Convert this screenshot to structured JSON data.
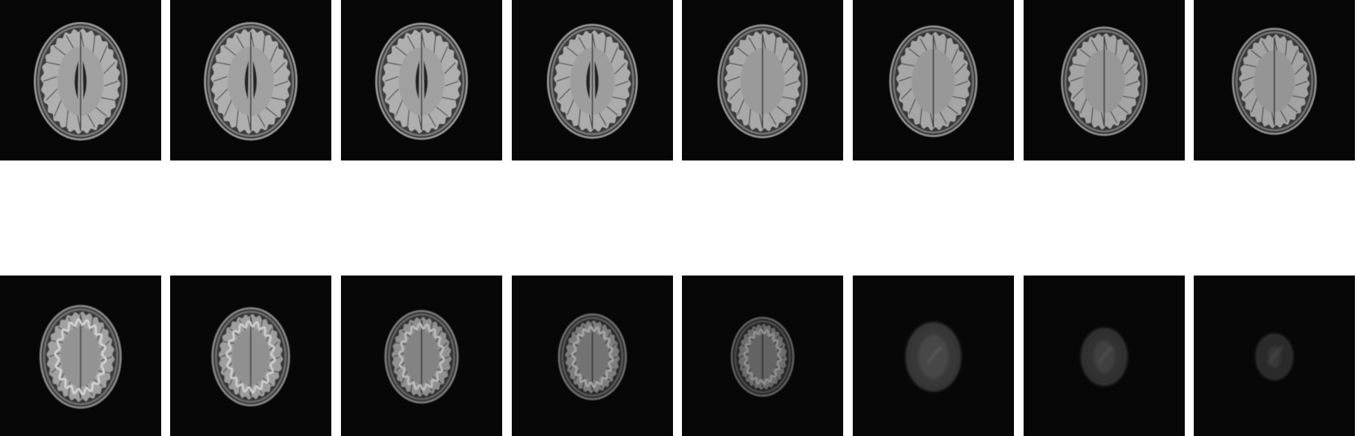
{
  "figure": {
    "background_color": "#ffffff",
    "tile_background": "#070707",
    "rows": [
      {
        "row_id": "top",
        "slices": [
          {
            "kind": "ventricle-level",
            "intensity": 1.0,
            "head_scale": 1.0
          },
          {
            "kind": "ventricle-level",
            "intensity": 1.0,
            "head_scale": 1.0
          },
          {
            "kind": "ventricle-level",
            "intensity": 1.0,
            "head_scale": 0.99
          },
          {
            "kind": "ventricle-level",
            "intensity": 0.98,
            "head_scale": 0.97
          },
          {
            "kind": "supraventricular",
            "intensity": 0.96,
            "head_scale": 0.96
          },
          {
            "kind": "supraventricular",
            "intensity": 0.95,
            "head_scale": 0.94
          },
          {
            "kind": "supraventricular",
            "intensity": 0.94,
            "head_scale": 0.92
          },
          {
            "kind": "supraventricular",
            "intensity": 0.93,
            "head_scale": 0.9
          }
        ]
      },
      {
        "row_id": "bottom",
        "slices": [
          {
            "kind": "vertex-gyri",
            "intensity": 0.92,
            "head_scale": 0.87
          },
          {
            "kind": "vertex-gyri",
            "intensity": 0.9,
            "head_scale": 0.83
          },
          {
            "kind": "vertex-gyri",
            "intensity": 0.82,
            "head_scale": 0.78
          },
          {
            "kind": "vertex-gyri",
            "intensity": 0.72,
            "head_scale": 0.72
          },
          {
            "kind": "vertex-gyri",
            "intensity": 0.62,
            "head_scale": 0.66
          },
          {
            "kind": "vertex-blur",
            "intensity": 0.5,
            "head_scale": 0.56
          },
          {
            "kind": "vertex-blur",
            "intensity": 0.45,
            "head_scale": 0.46
          },
          {
            "kind": "vertex-blur",
            "intensity": 0.4,
            "head_scale": 0.36
          }
        ]
      }
    ]
  }
}
